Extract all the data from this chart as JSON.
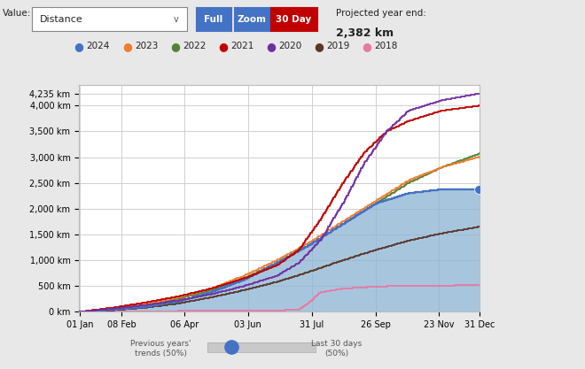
{
  "bg_color": "#e8e8e8",
  "plot_bg_color": "#ffffff",
  "grid_color": "#d0d0d0",
  "fill_color": "#8ab4d4",
  "fill_alpha": 0.75,
  "year_colors": {
    "2024": "#4472c4",
    "2023": "#ed7d31",
    "2022": "#548235",
    "2021": "#c00000",
    "2020": "#7030a0",
    "2019": "#5a3825",
    "2018": "#e879a0"
  },
  "x_tick_days": [
    1,
    39,
    96,
    154,
    212,
    270,
    328,
    365
  ],
  "x_labels": [
    "01 Jan",
    "08 Feb",
    "06 Apr",
    "03 Jun",
    "31 Jul",
    "26 Sep",
    "23 Nov",
    "31 Dec"
  ],
  "y_ticks": [
    0,
    500,
    1000,
    1500,
    2000,
    2500,
    3000,
    3500,
    4000,
    4235
  ],
  "y_labels": [
    "0 km",
    "500 km",
    "1,000 km",
    "1,500 km",
    "2,000 km",
    "2,500 km",
    "3,000 km",
    "3,500 km",
    "4,000 km",
    "4,235 km"
  ],
  "ylim_max": 4400,
  "legend_items": [
    "2024",
    "2023",
    "2022",
    "2021",
    "2020",
    "2019",
    "2018"
  ],
  "projected_label1": "Projected year end:",
  "projected_label2": "2,382 km",
  "value_text": "Value:",
  "dropdown_text": "Distance",
  "btn_labels": [
    "Full",
    "Zoom",
    "30 Day"
  ],
  "btn_bg_colors": [
    "#4472c4",
    "#4472c4",
    "#c00000"
  ],
  "slider_left_text": "Previous years'\ntrends (50%)",
  "slider_right_text": "Last 30 days\n(50%)"
}
